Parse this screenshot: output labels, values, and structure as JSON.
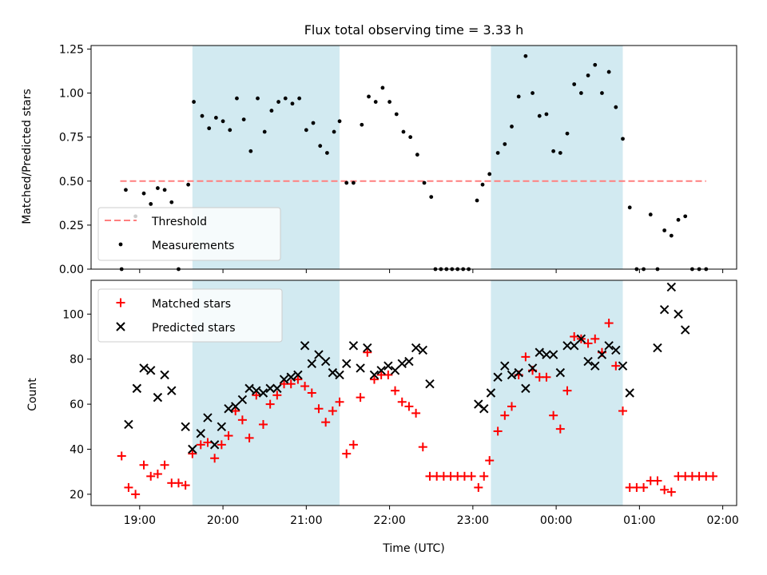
{
  "figure": {
    "title": "Flux total observing time = 3.33 h",
    "xlabel": "Time (UTC)"
  },
  "colors": {
    "shade": "#add8e6",
    "threshold": "#ff7f7f",
    "measurement": "#000000",
    "matched": "#ff0000",
    "predicted": "#000000"
  },
  "chart_data": [
    {
      "type": "scatter",
      "ylabel": "Matched/Predicted stars",
      "xlim": [
        "18:25",
        "02:10"
      ],
      "ylim": [
        0,
        1.27
      ],
      "xticks": [
        "19:00",
        "20:00",
        "21:00",
        "22:00",
        "23:00",
        "00:00",
        "01:00",
        "02:00"
      ],
      "yticks": [
        "0.00",
        "0.25",
        "0.50",
        "0.75",
        "1.00",
        "1.25"
      ],
      "shaded_regions": [
        [
          "19:38",
          "21:24"
        ],
        [
          "23:13",
          "00:48"
        ]
      ],
      "legend": {
        "position": "lower-left",
        "entries": [
          "Threshold",
          "Measurements"
        ]
      },
      "threshold": {
        "name": "Threshold",
        "value": 0.5,
        "x_range": [
          "18:46",
          "01:48"
        ]
      },
      "series": [
        {
          "name": "Measurements",
          "points": [
            [
              "18:47",
              0.0
            ],
            [
              "18:50",
              0.45
            ],
            [
              "18:57",
              0.3
            ],
            [
              "19:03",
              0.43
            ],
            [
              "19:08",
              0.37
            ],
            [
              "19:13",
              0.46
            ],
            [
              "19:18",
              0.45
            ],
            [
              "19:23",
              0.38
            ],
            [
              "19:28",
              0.0
            ],
            [
              "19:35",
              0.48
            ],
            [
              "19:39",
              0.95
            ],
            [
              "19:45",
              0.87
            ],
            [
              "19:50",
              0.8
            ],
            [
              "19:55",
              0.86
            ],
            [
              "20:00",
              0.84
            ],
            [
              "20:05",
              0.79
            ],
            [
              "20:10",
              0.97
            ],
            [
              "20:15",
              0.85
            ],
            [
              "20:20",
              0.67
            ],
            [
              "20:25",
              0.97
            ],
            [
              "20:30",
              0.78
            ],
            [
              "20:35",
              0.9
            ],
            [
              "20:40",
              0.95
            ],
            [
              "20:45",
              0.97
            ],
            [
              "20:50",
              0.94
            ],
            [
              "20:55",
              0.97
            ],
            [
              "21:00",
              0.79
            ],
            [
              "21:05",
              0.83
            ],
            [
              "21:10",
              0.7
            ],
            [
              "21:15",
              0.66
            ],
            [
              "21:20",
              0.78
            ],
            [
              "21:24",
              0.84
            ],
            [
              "21:29",
              0.49
            ],
            [
              "21:34",
              0.49
            ],
            [
              "21:40",
              0.82
            ],
            [
              "21:45",
              0.98
            ],
            [
              "21:50",
              0.95
            ],
            [
              "21:55",
              1.03
            ],
            [
              "22:00",
              0.95
            ],
            [
              "22:05",
              0.88
            ],
            [
              "22:10",
              0.78
            ],
            [
              "22:15",
              0.75
            ],
            [
              "22:20",
              0.65
            ],
            [
              "22:25",
              0.49
            ],
            [
              "22:30",
              0.41
            ],
            [
              "22:33",
              0.0
            ],
            [
              "22:37",
              0.0
            ],
            [
              "22:41",
              0.0
            ],
            [
              "22:45",
              0.0
            ],
            [
              "22:49",
              0.0
            ],
            [
              "22:53",
              0.0
            ],
            [
              "22:57",
              0.0
            ],
            [
              "23:03",
              0.39
            ],
            [
              "23:07",
              0.48
            ],
            [
              "23:12",
              0.54
            ],
            [
              "23:18",
              0.66
            ],
            [
              "23:23",
              0.71
            ],
            [
              "23:28",
              0.81
            ],
            [
              "23:33",
              0.98
            ],
            [
              "23:38",
              1.21
            ],
            [
              "23:43",
              1.0
            ],
            [
              "23:48",
              0.87
            ],
            [
              "23:53",
              0.88
            ],
            [
              "23:58",
              0.67
            ],
            [
              "00:03",
              0.66
            ],
            [
              "00:08",
              0.77
            ],
            [
              "00:13",
              1.05
            ],
            [
              "00:18",
              1.0
            ],
            [
              "00:23",
              1.1
            ],
            [
              "00:28",
              1.16
            ],
            [
              "00:33",
              1.0
            ],
            [
              "00:38",
              1.12
            ],
            [
              "00:43",
              0.92
            ],
            [
              "00:48",
              0.74
            ],
            [
              "00:53",
              0.35
            ],
            [
              "00:58",
              0.0
            ],
            [
              "01:03",
              0.0
            ],
            [
              "01:08",
              0.31
            ],
            [
              "01:13",
              0.0
            ],
            [
              "01:18",
              0.22
            ],
            [
              "01:23",
              0.19
            ],
            [
              "01:28",
              0.28
            ],
            [
              "01:33",
              0.3
            ],
            [
              "01:38",
              0.0
            ],
            [
              "01:43",
              0.0
            ],
            [
              "01:48",
              0.0
            ]
          ]
        }
      ]
    },
    {
      "type": "scatter",
      "ylabel": "Count",
      "xlim": [
        "18:25",
        "02:10"
      ],
      "ylim": [
        15,
        115
      ],
      "xticks": [
        "19:00",
        "20:00",
        "21:00",
        "22:00",
        "23:00",
        "00:00",
        "01:00",
        "02:00"
      ],
      "yticks": [
        "20",
        "40",
        "60",
        "80",
        "100"
      ],
      "shaded_regions": [
        [
          "19:38",
          "21:24"
        ],
        [
          "23:13",
          "00:48"
        ]
      ],
      "legend": {
        "position": "upper-left",
        "entries": [
          "Matched stars",
          "Predicted stars"
        ]
      },
      "series": [
        {
          "name": "Matched stars",
          "marker": "+",
          "points": [
            [
              "18:47",
              37
            ],
            [
              "18:52",
              23
            ],
            [
              "18:57",
              20
            ],
            [
              "19:03",
              33
            ],
            [
              "19:08",
              28
            ],
            [
              "19:13",
              29
            ],
            [
              "19:18",
              33
            ],
            [
              "19:23",
              25
            ],
            [
              "19:28",
              25
            ],
            [
              "19:33",
              24
            ],
            [
              "19:38",
              38
            ],
            [
              "19:44",
              42
            ],
            [
              "19:49",
              43
            ],
            [
              "19:54",
              36
            ],
            [
              "19:59",
              42
            ],
            [
              "20:04",
              46
            ],
            [
              "20:09",
              57
            ],
            [
              "20:14",
              53
            ],
            [
              "20:19",
              45
            ],
            [
              "20:24",
              64
            ],
            [
              "20:29",
              51
            ],
            [
              "20:34",
              60
            ],
            [
              "20:39",
              64
            ],
            [
              "20:44",
              69
            ],
            [
              "20:49",
              69
            ],
            [
              "20:54",
              71
            ],
            [
              "20:59",
              68
            ],
            [
              "21:04",
              65
            ],
            [
              "21:09",
              58
            ],
            [
              "21:14",
              52
            ],
            [
              "21:19",
              57
            ],
            [
              "21:24",
              61
            ],
            [
              "21:29",
              38
            ],
            [
              "21:34",
              42
            ],
            [
              "21:39",
              63
            ],
            [
              "21:44",
              83
            ],
            [
              "21:49",
              71
            ],
            [
              "21:54",
              73
            ],
            [
              "21:59",
              73
            ],
            [
              "22:04",
              66
            ],
            [
              "22:09",
              61
            ],
            [
              "22:14",
              59
            ],
            [
              "22:19",
              56
            ],
            [
              "22:24",
              41
            ],
            [
              "22:29",
              28
            ],
            [
              "22:34",
              28
            ],
            [
              "22:39",
              28
            ],
            [
              "22:44",
              28
            ],
            [
              "22:49",
              28
            ],
            [
              "22:54",
              28
            ],
            [
              "22:59",
              28
            ],
            [
              "23:04",
              23
            ],
            [
              "23:08",
              28
            ],
            [
              "23:12",
              35
            ],
            [
              "23:18",
              48
            ],
            [
              "23:23",
              55
            ],
            [
              "23:28",
              59
            ],
            [
              "23:33",
              73
            ],
            [
              "23:38",
              81
            ],
            [
              "23:43",
              75
            ],
            [
              "23:48",
              72
            ],
            [
              "23:53",
              72
            ],
            [
              "23:58",
              55
            ],
            [
              "00:03",
              49
            ],
            [
              "00:08",
              66
            ],
            [
              "00:13",
              90
            ],
            [
              "00:18",
              89
            ],
            [
              "00:23",
              87
            ],
            [
              "00:28",
              89
            ],
            [
              "00:33",
              83
            ],
            [
              "00:38",
              96
            ],
            [
              "00:43",
              77
            ],
            [
              "00:48",
              57
            ],
            [
              "00:53",
              23
            ],
            [
              "00:58",
              23
            ],
            [
              "01:03",
              23
            ],
            [
              "01:08",
              26
            ],
            [
              "01:13",
              26
            ],
            [
              "01:18",
              22
            ],
            [
              "01:23",
              21
            ],
            [
              "01:28",
              28
            ],
            [
              "01:33",
              28
            ],
            [
              "01:38",
              28
            ],
            [
              "01:43",
              28
            ],
            [
              "01:48",
              28
            ],
            [
              "01:53",
              28
            ]
          ]
        },
        {
          "name": "Predicted stars",
          "marker": "x",
          "points": [
            [
              "18:52",
              51
            ],
            [
              "18:58",
              67
            ],
            [
              "19:03",
              76
            ],
            [
              "19:08",
              75
            ],
            [
              "19:13",
              63
            ],
            [
              "19:18",
              73
            ],
            [
              "19:23",
              66
            ],
            [
              "19:33",
              50
            ],
            [
              "19:38",
              40
            ],
            [
              "19:44",
              47
            ],
            [
              "19:49",
              54
            ],
            [
              "19:54",
              42
            ],
            [
              "19:59",
              50
            ],
            [
              "20:04",
              58
            ],
            [
              "20:09",
              59
            ],
            [
              "20:14",
              62
            ],
            [
              "20:19",
              67
            ],
            [
              "20:24",
              66
            ],
            [
              "20:29",
              65
            ],
            [
              "20:34",
              67
            ],
            [
              "20:39",
              67
            ],
            [
              "20:44",
              71
            ],
            [
              "20:49",
              72
            ],
            [
              "20:54",
              73
            ],
            [
              "20:59",
              86
            ],
            [
              "21:04",
              78
            ],
            [
              "21:09",
              82
            ],
            [
              "21:14",
              79
            ],
            [
              "21:19",
              74
            ],
            [
              "21:24",
              73
            ],
            [
              "21:29",
              78
            ],
            [
              "21:34",
              86
            ],
            [
              "21:39",
              76
            ],
            [
              "21:44",
              85
            ],
            [
              "21:49",
              73
            ],
            [
              "21:54",
              75
            ],
            [
              "21:59",
              77
            ],
            [
              "22:04",
              75
            ],
            [
              "22:09",
              78
            ],
            [
              "22:14",
              79
            ],
            [
              "22:19",
              85
            ],
            [
              "22:24",
              84
            ],
            [
              "22:29",
              69
            ],
            [
              "23:04",
              60
            ],
            [
              "23:08",
              58
            ],
            [
              "23:13",
              65
            ],
            [
              "23:18",
              72
            ],
            [
              "23:23",
              77
            ],
            [
              "23:28",
              73
            ],
            [
              "23:33",
              74
            ],
            [
              "23:38",
              67
            ],
            [
              "23:43",
              76
            ],
            [
              "23:48",
              83
            ],
            [
              "23:53",
              82
            ],
            [
              "23:58",
              82
            ],
            [
              "00:03",
              74
            ],
            [
              "00:08",
              86
            ],
            [
              "00:13",
              86
            ],
            [
              "00:18",
              89
            ],
            [
              "00:23",
              79
            ],
            [
              "00:28",
              77
            ],
            [
              "00:33",
              82
            ],
            [
              "00:38",
              86
            ],
            [
              "00:43",
              84
            ],
            [
              "00:48",
              77
            ],
            [
              "00:53",
              65
            ],
            [
              "01:13",
              85
            ],
            [
              "01:18",
              102
            ],
            [
              "01:23",
              112
            ],
            [
              "01:28",
              100
            ],
            [
              "01:33",
              93
            ]
          ]
        }
      ]
    }
  ]
}
